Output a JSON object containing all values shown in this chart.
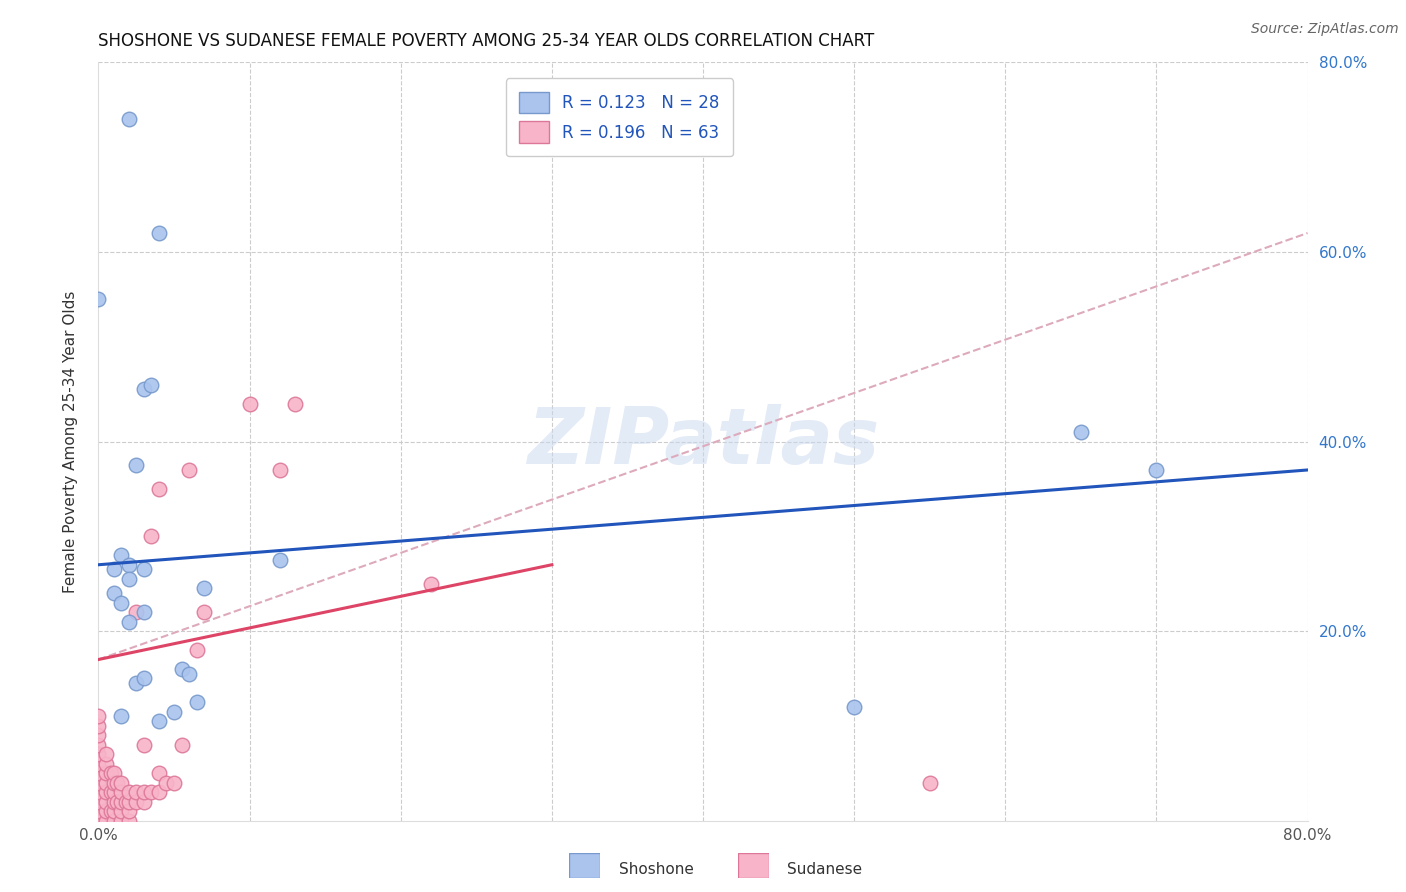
{
  "title": "SHOSHONE VS SUDANESE FEMALE POVERTY AMONG 25-34 YEAR OLDS CORRELATION CHART",
  "source": "Source: ZipAtlas.com",
  "ylabel": "Female Poverty Among 25-34 Year Olds",
  "xlim": [
    0,
    0.8
  ],
  "ylim": [
    0,
    0.8
  ],
  "shoshone_color": "#aac4ee",
  "sudanese_color": "#f8b4c8",
  "shoshone_edge": "#7799cc",
  "sudanese_edge": "#dd7799",
  "trend_shoshone_color": "#2255bb",
  "trend_sudanese_solid_color": "#dd4466",
  "trend_sudanese_dashed_color": "#ddaabc",
  "legend_R_shoshone": "0.123",
  "legend_N_shoshone": "28",
  "legend_R_sudanese": "0.196",
  "legend_N_sudanese": "63",
  "watermark": "ZIPatlas",
  "shoshone_x": [
    0.02,
    0.0,
    0.04,
    0.03,
    0.035,
    0.025,
    0.01,
    0.01,
    0.015,
    0.02,
    0.02,
    0.03,
    0.07,
    0.055,
    0.06,
    0.065,
    0.05,
    0.12,
    0.65,
    0.7,
    0.04,
    0.03,
    0.025,
    0.015,
    0.015,
    0.02,
    0.03,
    0.5
  ],
  "shoshone_y": [
    0.74,
    0.55,
    0.62,
    0.455,
    0.46,
    0.375,
    0.24,
    0.265,
    0.28,
    0.27,
    0.255,
    0.265,
    0.245,
    0.16,
    0.155,
    0.125,
    0.115,
    0.275,
    0.41,
    0.37,
    0.105,
    0.22,
    0.145,
    0.11,
    0.23,
    0.21,
    0.15,
    0.12
  ],
  "sudanese_x": [
    0.0,
    0.0,
    0.0,
    0.0,
    0.0,
    0.0,
    0.0,
    0.0,
    0.0,
    0.0,
    0.0,
    0.0,
    0.005,
    0.005,
    0.005,
    0.005,
    0.005,
    0.005,
    0.005,
    0.005,
    0.008,
    0.008,
    0.008,
    0.01,
    0.01,
    0.01,
    0.01,
    0.01,
    0.01,
    0.012,
    0.012,
    0.015,
    0.015,
    0.015,
    0.015,
    0.015,
    0.018,
    0.02,
    0.02,
    0.02,
    0.02,
    0.025,
    0.025,
    0.025,
    0.03,
    0.03,
    0.03,
    0.035,
    0.035,
    0.04,
    0.04,
    0.04,
    0.045,
    0.05,
    0.055,
    0.06,
    0.065,
    0.07,
    0.1,
    0.12,
    0.13,
    0.22,
    0.55
  ],
  "sudanese_y": [
    0.0,
    0.01,
    0.02,
    0.03,
    0.04,
    0.05,
    0.06,
    0.07,
    0.08,
    0.09,
    0.1,
    0.11,
    0.0,
    0.01,
    0.02,
    0.03,
    0.04,
    0.05,
    0.06,
    0.07,
    0.01,
    0.03,
    0.05,
    0.0,
    0.01,
    0.02,
    0.03,
    0.04,
    0.05,
    0.02,
    0.04,
    0.0,
    0.01,
    0.02,
    0.03,
    0.04,
    0.02,
    0.0,
    0.01,
    0.02,
    0.03,
    0.02,
    0.03,
    0.22,
    0.02,
    0.03,
    0.08,
    0.03,
    0.3,
    0.03,
    0.05,
    0.35,
    0.04,
    0.04,
    0.08,
    0.37,
    0.18,
    0.22,
    0.44,
    0.37,
    0.44,
    0.25,
    0.04
  ],
  "trend_shoshone_x0": 0.0,
  "trend_shoshone_x1": 0.8,
  "trend_shoshone_y0": 0.27,
  "trend_shoshone_y1": 0.37,
  "trend_sudanese_solid_x0": 0.0,
  "trend_sudanese_solid_x1": 0.3,
  "trend_sudanese_solid_y0": 0.17,
  "trend_sudanese_solid_y1": 0.27,
  "trend_sudanese_dashed_x0": 0.0,
  "trend_sudanese_dashed_x1": 0.8,
  "trend_sudanese_dashed_y0": 0.17,
  "trend_sudanese_dashed_y1": 0.62
}
